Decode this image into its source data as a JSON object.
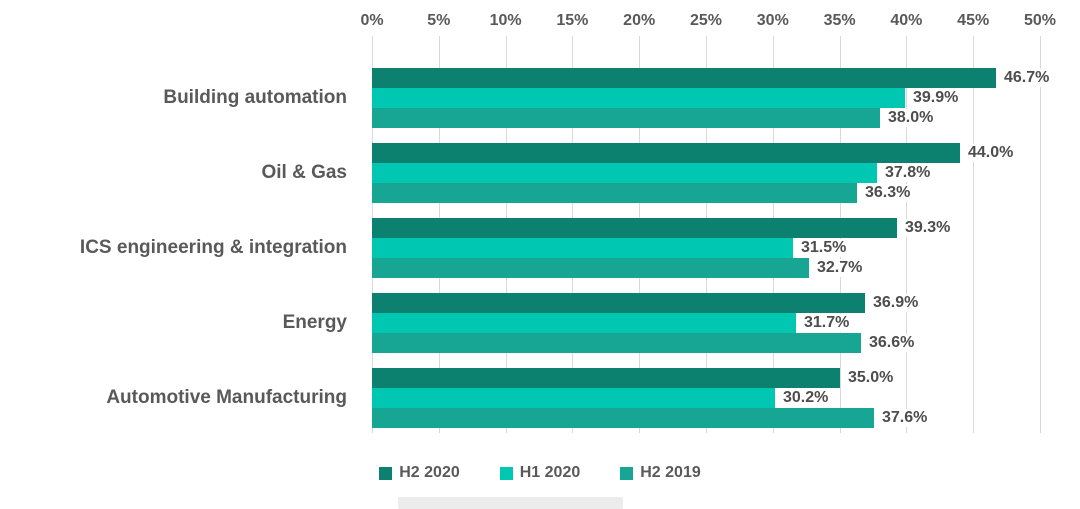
{
  "chart_data": {
    "type": "bar",
    "orientation": "horizontal",
    "title": "",
    "xlabel": "",
    "ylabel": "",
    "categories": [
      "Building automation",
      "Oil & Gas",
      "ICS engineering & integration",
      "Energy",
      "Automotive Manufacturing"
    ],
    "series": [
      {
        "name": "H2 2020",
        "color": "#0c8170",
        "values": [
          46.7,
          44.0,
          39.3,
          36.9,
          35.0
        ]
      },
      {
        "name": "H1 2020",
        "color": "#00c7b2",
        "values": [
          39.9,
          37.8,
          31.5,
          31.7,
          30.2
        ]
      },
      {
        "name": "H2 2019",
        "color": "#17a694",
        "values": [
          38.0,
          36.3,
          32.7,
          36.6,
          37.6
        ]
      }
    ],
    "data_labels": [
      [
        "46.7%",
        "44.0%",
        "39.3%",
        "36.9%",
        "35.0%"
      ],
      [
        "39.9%",
        "37.8%",
        "31.5%",
        "31.7%",
        "30.2%"
      ],
      [
        "38.0%",
        "36.3%",
        "32.7%",
        "36.6%",
        "37.6%"
      ]
    ],
    "axis": {
      "ticks": [
        "0%",
        "5%",
        "10%",
        "15%",
        "20%",
        "25%",
        "30%",
        "35%",
        "40%",
        "45%",
        "50%"
      ],
      "min": 0,
      "max": 50,
      "step": 5
    },
    "grid": true,
    "legend_position": "bottom",
    "legend": [
      "H2 2020",
      "H1 2020",
      "H2 2019"
    ]
  },
  "colors": {
    "gridline": "#d9d9d9",
    "axis_text": "#595959",
    "category_text": "#595959",
    "data_label_text": "#4d4d4d",
    "background": "#ffffff"
  }
}
